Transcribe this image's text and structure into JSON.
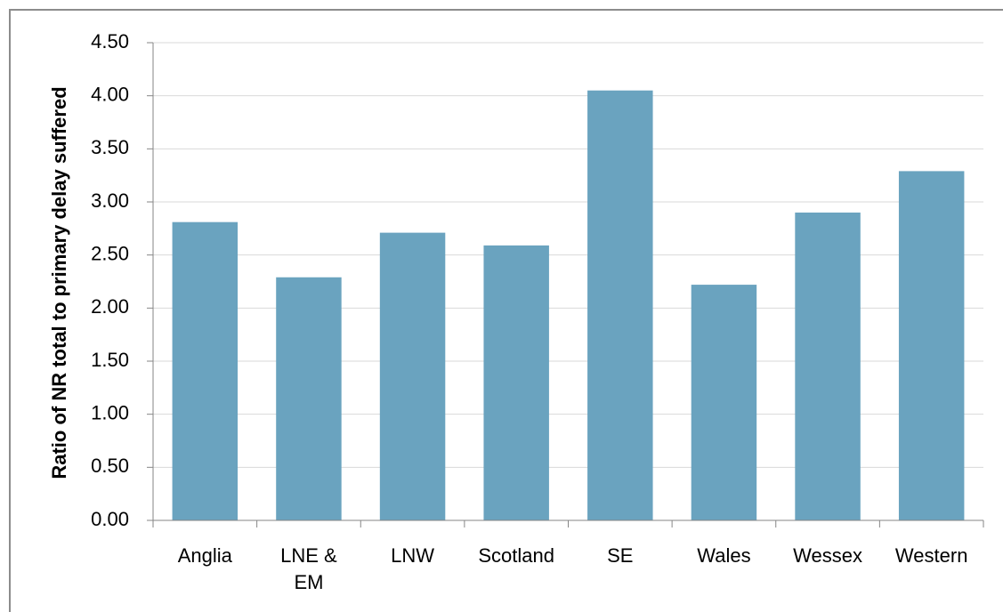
{
  "chart_data": {
    "type": "bar",
    "y_label": "Ratio of NR total to primary delay suffered",
    "categories": [
      "Anglia",
      "LNE & EM",
      "LNW",
      "Scotland",
      "SE",
      "Wales",
      "Wessex",
      "Western"
    ],
    "values": [
      2.81,
      2.29,
      2.71,
      2.59,
      4.05,
      2.22,
      2.9,
      3.29
    ],
    "color": "#6aa3bf",
    "ylim": [
      0,
      4.5
    ],
    "yticks": [
      {
        "value": 0,
        "label": "0.00"
      },
      {
        "value": 0.5,
        "label": "0.50"
      },
      {
        "value": 1,
        "label": "1.00"
      },
      {
        "value": 1.5,
        "label": "1.50"
      },
      {
        "value": 2,
        "label": "2.00"
      },
      {
        "value": 2.5,
        "label": "2.50"
      },
      {
        "value": 3,
        "label": "3.00"
      },
      {
        "value": 3.5,
        "label": "3.50"
      },
      {
        "value": 4,
        "label": "4.00"
      },
      {
        "value": 4.5,
        "label": "4.50"
      }
    ],
    "grid": true
  }
}
